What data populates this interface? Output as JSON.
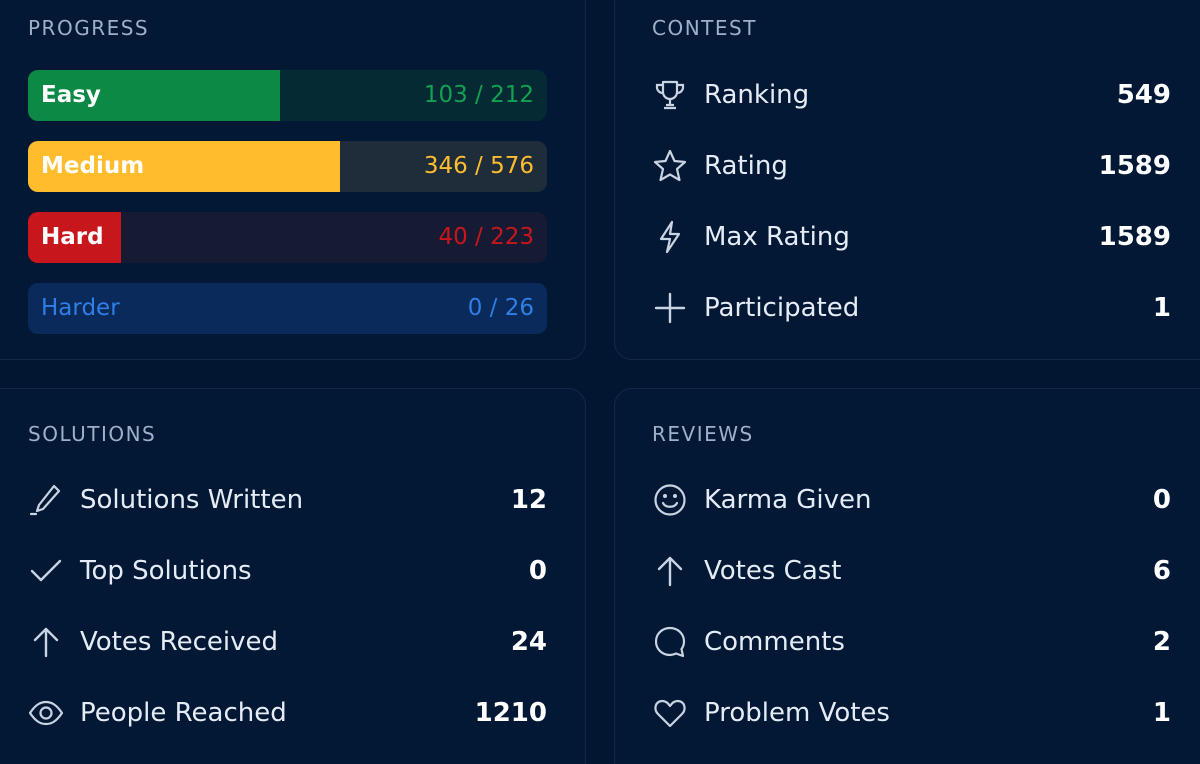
{
  "colors": {
    "background": "#021632",
    "easy": "#0c8a45",
    "easy_track": "#062a33",
    "easy_text": "#12a152",
    "medium": "#ffbc2d",
    "medium_track": "#1f2d3a",
    "hard": "#c8161d",
    "hard_track": "#171a33",
    "hard_text": "#c8161d",
    "harder_track": "#0a2a5c",
    "harder_text": "#2f7fe6"
  },
  "progress": {
    "title": "PROGRESS",
    "bars": [
      {
        "label": "Easy",
        "count": "103 / 212",
        "solved": 103,
        "total": 212
      },
      {
        "label": "Medium",
        "count": "346 / 576",
        "solved": 346,
        "total": 576
      },
      {
        "label": "Hard",
        "count": "40 / 223",
        "solved": 40,
        "total": 223
      },
      {
        "label": "Harder",
        "count": "0 / 26",
        "solved": 0,
        "total": 26
      }
    ]
  },
  "contest": {
    "title": "CONTEST",
    "items": [
      {
        "icon": "trophy-icon",
        "label": "Ranking",
        "value": "549"
      },
      {
        "icon": "star-icon",
        "label": "Rating",
        "value": "1589"
      },
      {
        "icon": "lightning-icon",
        "label": "Max Rating",
        "value": "1589"
      },
      {
        "icon": "plus-icon",
        "label": "Participated",
        "value": "1"
      }
    ]
  },
  "solutions": {
    "title": "SOLUTIONS",
    "items": [
      {
        "icon": "pencil-icon",
        "label": "Solutions Written",
        "value": "12"
      },
      {
        "icon": "check-icon",
        "label": "Top Solutions",
        "value": "0"
      },
      {
        "icon": "arrow-up-icon",
        "label": "Votes Received",
        "value": "24"
      },
      {
        "icon": "eye-icon",
        "label": "People Reached",
        "value": "1210"
      }
    ]
  },
  "reviews": {
    "title": "REVIEWS",
    "items": [
      {
        "icon": "smiley-icon",
        "label": "Karma Given",
        "value": "0"
      },
      {
        "icon": "arrow-up-icon",
        "label": "Votes Cast",
        "value": "6"
      },
      {
        "icon": "comment-icon",
        "label": "Comments",
        "value": "2"
      },
      {
        "icon": "heart-icon",
        "label": "Problem Votes",
        "value": "1"
      }
    ]
  }
}
